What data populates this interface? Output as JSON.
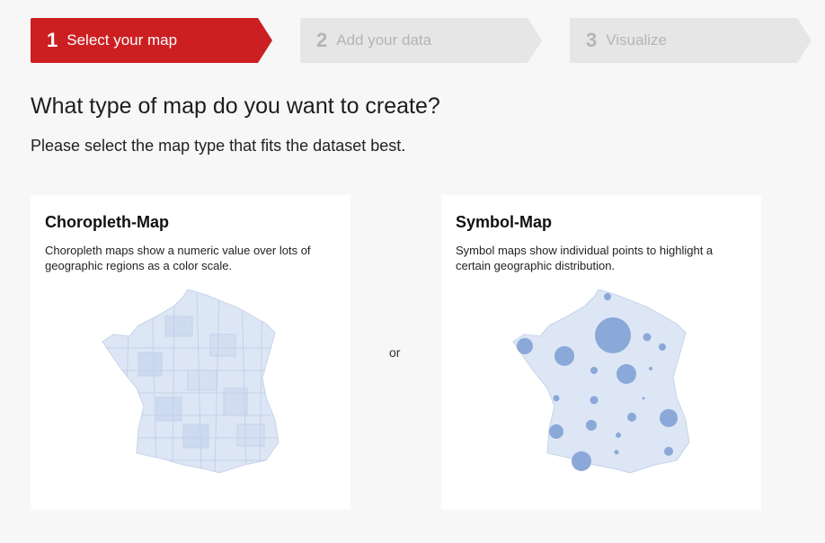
{
  "steps": [
    {
      "number": "1",
      "label": "Select your map",
      "state": "active"
    },
    {
      "number": "2",
      "label": "Add your data",
      "state": "inactive"
    },
    {
      "number": "3",
      "label": "Visualize",
      "state": "inactive"
    }
  ],
  "heading": "What type of map do you want to create?",
  "subheading": "Please select the map type that fits the dataset best.",
  "cards": [
    {
      "title": "Choropleth-Map",
      "description": "Choropleth maps show a numeric value over lots of geographic regions as a color scale.",
      "icon": "choropleth-map-icon"
    },
    {
      "title": "Symbol-Map",
      "description": "Symbol maps show individual points to highlight a certain geographic distribution.",
      "icon": "symbol-map-icon"
    }
  ],
  "separator": "or",
  "colors": {
    "accent": "#cc1f22",
    "inactive_step": "#e6e6e6",
    "map_fill": "#dde6f4",
    "region_stroke": "#c3d2ea",
    "symbol": "#8aa8d8"
  }
}
